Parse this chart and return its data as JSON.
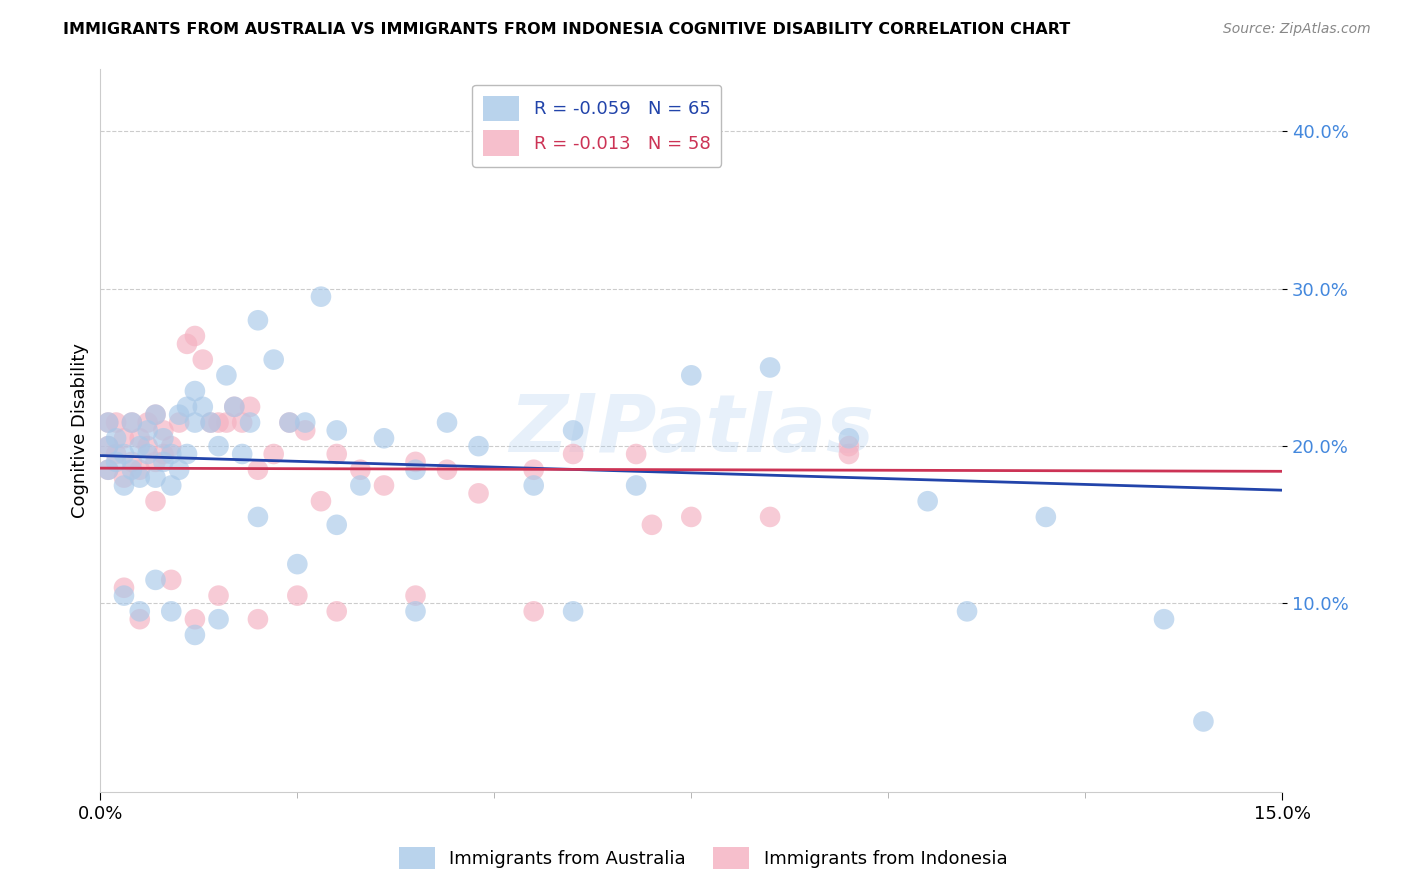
{
  "title": "IMMIGRANTS FROM AUSTRALIA VS IMMIGRANTS FROM INDONESIA COGNITIVE DISABILITY CORRELATION CHART",
  "source": "Source: ZipAtlas.com",
  "ylabel": "Cognitive Disability",
  "y_ticks": [
    0.1,
    0.2,
    0.3,
    0.4
  ],
  "y_tick_labels": [
    "10.0%",
    "20.0%",
    "30.0%",
    "40.0%"
  ],
  "xlim": [
    0.0,
    0.15
  ],
  "ylim": [
    -0.02,
    0.44
  ],
  "australia_R": -0.059,
  "australia_N": 65,
  "indonesia_R": -0.013,
  "indonesia_N": 58,
  "australia_color": "#a8c8e8",
  "indonesia_color": "#f4b0c0",
  "australia_line_color": "#2244aa",
  "indonesia_line_color": "#cc3355",
  "australia_line_color_legend": "#2244aa",
  "indonesia_line_color_legend": "#cc3355",
  "watermark": "ZIPatlas",
  "australia_x": [
    0.001,
    0.001,
    0.001,
    0.002,
    0.002,
    0.003,
    0.003,
    0.004,
    0.004,
    0.005,
    0.005,
    0.006,
    0.006,
    0.007,
    0.007,
    0.008,
    0.008,
    0.009,
    0.009,
    0.01,
    0.01,
    0.011,
    0.011,
    0.012,
    0.012,
    0.013,
    0.014,
    0.015,
    0.016,
    0.017,
    0.018,
    0.019,
    0.02,
    0.022,
    0.024,
    0.026,
    0.028,
    0.03,
    0.033,
    0.036,
    0.04,
    0.044,
    0.048,
    0.055,
    0.06,
    0.068,
    0.075,
    0.085,
    0.095,
    0.105,
    0.11,
    0.12,
    0.135,
    0.14,
    0.003,
    0.005,
    0.007,
    0.009,
    0.012,
    0.015,
    0.02,
    0.025,
    0.03,
    0.04,
    0.06
  ],
  "australia_y": [
    0.185,
    0.2,
    0.215,
    0.19,
    0.205,
    0.175,
    0.195,
    0.185,
    0.215,
    0.18,
    0.2,
    0.195,
    0.21,
    0.18,
    0.22,
    0.19,
    0.205,
    0.175,
    0.195,
    0.185,
    0.22,
    0.225,
    0.195,
    0.235,
    0.215,
    0.225,
    0.215,
    0.2,
    0.245,
    0.225,
    0.195,
    0.215,
    0.28,
    0.255,
    0.215,
    0.215,
    0.295,
    0.21,
    0.175,
    0.205,
    0.185,
    0.215,
    0.2,
    0.175,
    0.21,
    0.175,
    0.245,
    0.25,
    0.205,
    0.165,
    0.095,
    0.155,
    0.09,
    0.025,
    0.105,
    0.095,
    0.115,
    0.095,
    0.08,
    0.09,
    0.155,
    0.125,
    0.15,
    0.095,
    0.095
  ],
  "indonesia_x": [
    0.001,
    0.001,
    0.001,
    0.002,
    0.002,
    0.003,
    0.003,
    0.004,
    0.004,
    0.005,
    0.005,
    0.006,
    0.006,
    0.007,
    0.007,
    0.008,
    0.008,
    0.009,
    0.01,
    0.011,
    0.012,
    0.013,
    0.014,
    0.015,
    0.016,
    0.017,
    0.018,
    0.019,
    0.02,
    0.022,
    0.024,
    0.026,
    0.028,
    0.03,
    0.033,
    0.036,
    0.04,
    0.044,
    0.048,
    0.055,
    0.06,
    0.068,
    0.075,
    0.085,
    0.095,
    0.003,
    0.005,
    0.007,
    0.009,
    0.012,
    0.015,
    0.02,
    0.025,
    0.03,
    0.04,
    0.055,
    0.07,
    0.095
  ],
  "indonesia_y": [
    0.185,
    0.2,
    0.215,
    0.195,
    0.215,
    0.18,
    0.205,
    0.19,
    0.215,
    0.185,
    0.205,
    0.2,
    0.215,
    0.19,
    0.22,
    0.195,
    0.21,
    0.2,
    0.215,
    0.265,
    0.27,
    0.255,
    0.215,
    0.215,
    0.215,
    0.225,
    0.215,
    0.225,
    0.185,
    0.195,
    0.215,
    0.21,
    0.165,
    0.195,
    0.185,
    0.175,
    0.19,
    0.185,
    0.17,
    0.185,
    0.195,
    0.195,
    0.155,
    0.155,
    0.195,
    0.11,
    0.09,
    0.165,
    0.115,
    0.09,
    0.105,
    0.09,
    0.105,
    0.095,
    0.105,
    0.095,
    0.15,
    0.2
  ],
  "aus_trend_x": [
    0.0,
    0.15
  ],
  "aus_trend_y": [
    0.194,
    0.172
  ],
  "ind_trend_x": [
    0.0,
    0.15
  ],
  "ind_trend_y": [
    0.186,
    0.184
  ]
}
